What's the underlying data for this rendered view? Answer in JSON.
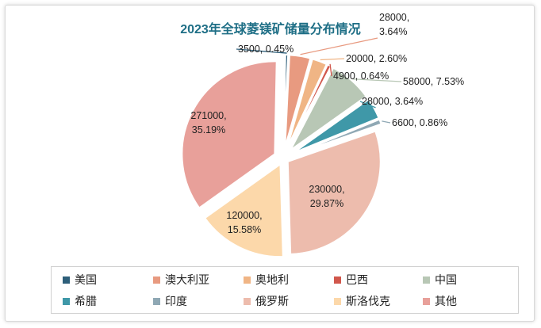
{
  "chart_data": {
    "type": "pie",
    "title": "2023年全球菱镁矿储量分布情况",
    "slices": [
      {
        "name": "美国",
        "value": 3500,
        "percent": "0.45%",
        "label": "3500, 0.45%",
        "color": "#2e5f7a"
      },
      {
        "name": "澳大利亚",
        "value": 28000,
        "percent": "3.64%",
        "label": "28000, 3.64%",
        "color": "#e89a80"
      },
      {
        "name": "奥地利",
        "value": 20000,
        "percent": "2.60%",
        "label": "20000, 2.60%",
        "color": "#f0b585"
      },
      {
        "name": "巴西",
        "value": 4900,
        "percent": "0.64%",
        "label": "4900, 0.64%",
        "color": "#d1574c"
      },
      {
        "name": "中国",
        "value": 58000,
        "percent": "7.53%",
        "label": "58000, 7.53%",
        "color": "#b8c7b5"
      },
      {
        "name": "希腊",
        "value": 28000,
        "percent": "3.64%",
        "label": "28000, 3.64%",
        "color": "#3f98a8"
      },
      {
        "name": "印度",
        "value": 6600,
        "percent": "0.86%",
        "label": "6600, 0.86%",
        "color": "#8fa8b4"
      },
      {
        "name": "俄罗斯",
        "value": 230000,
        "percent": "29.87%",
        "label": "230000, 29.87%",
        "color": "#edbcad"
      },
      {
        "name": "斯洛伐克",
        "value": 120000,
        "percent": "15.58%",
        "label": "120000, 15.58%",
        "color": "#fcd8aa"
      },
      {
        "name": "其他",
        "value": 271000,
        "percent": "35.19%",
        "label": "271000, 35.19%",
        "color": "#e8a09a"
      }
    ],
    "legend_position": "bottom"
  }
}
